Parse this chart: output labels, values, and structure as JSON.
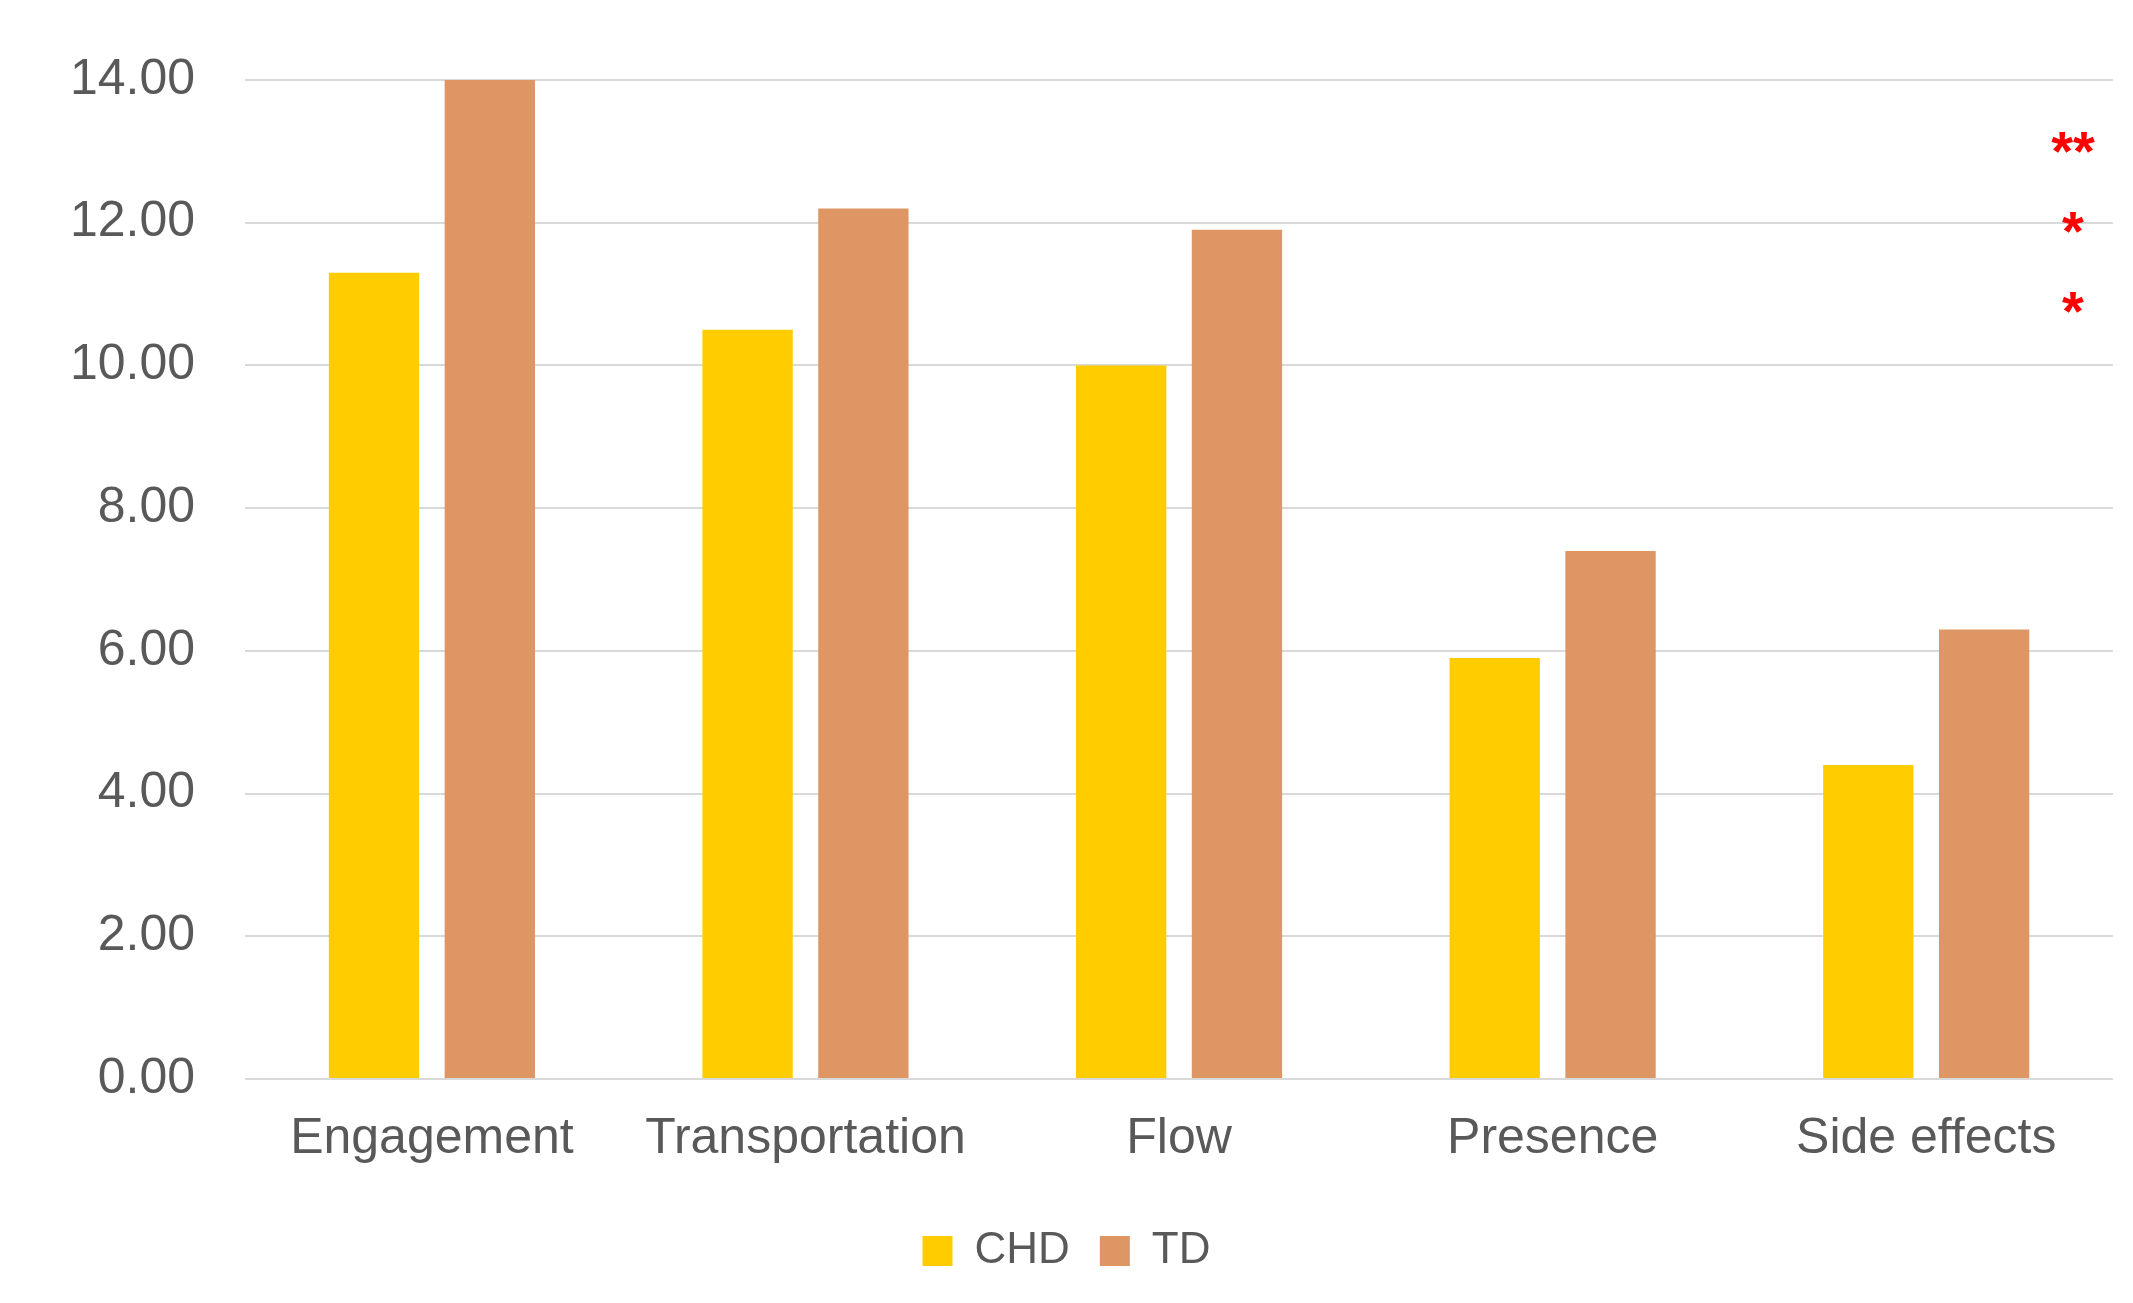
{
  "chart_data": {
    "type": "bar",
    "categories": [
      "Engagement",
      "Transportation",
      "Flow",
      "Presence",
      "Side effects"
    ],
    "series": [
      {
        "name": "CHD",
        "color": "#ffcc00",
        "values": [
          11.3,
          10.5,
          10.0,
          5.9,
          4.4
        ]
      },
      {
        "name": "TD",
        "color": "#dd9664",
        "values": [
          14.0,
          12.2,
          11.9,
          7.4,
          6.3
        ]
      }
    ],
    "ylim": [
      0,
      14
    ],
    "yticks": [
      {
        "value": 0,
        "label": "0.00"
      },
      {
        "value": 2,
        "label": "2.00"
      },
      {
        "value": 4,
        "label": "4.00"
      },
      {
        "value": 6,
        "label": "6.00"
      },
      {
        "value": 8,
        "label": "8.00"
      },
      {
        "value": 10,
        "label": "10.00"
      },
      {
        "value": 12,
        "label": "12.00"
      },
      {
        "value": 14,
        "label": "14.00"
      }
    ],
    "grid": "y",
    "legend": "bottom",
    "annotations": [
      "**",
      "*",
      "*"
    ]
  }
}
